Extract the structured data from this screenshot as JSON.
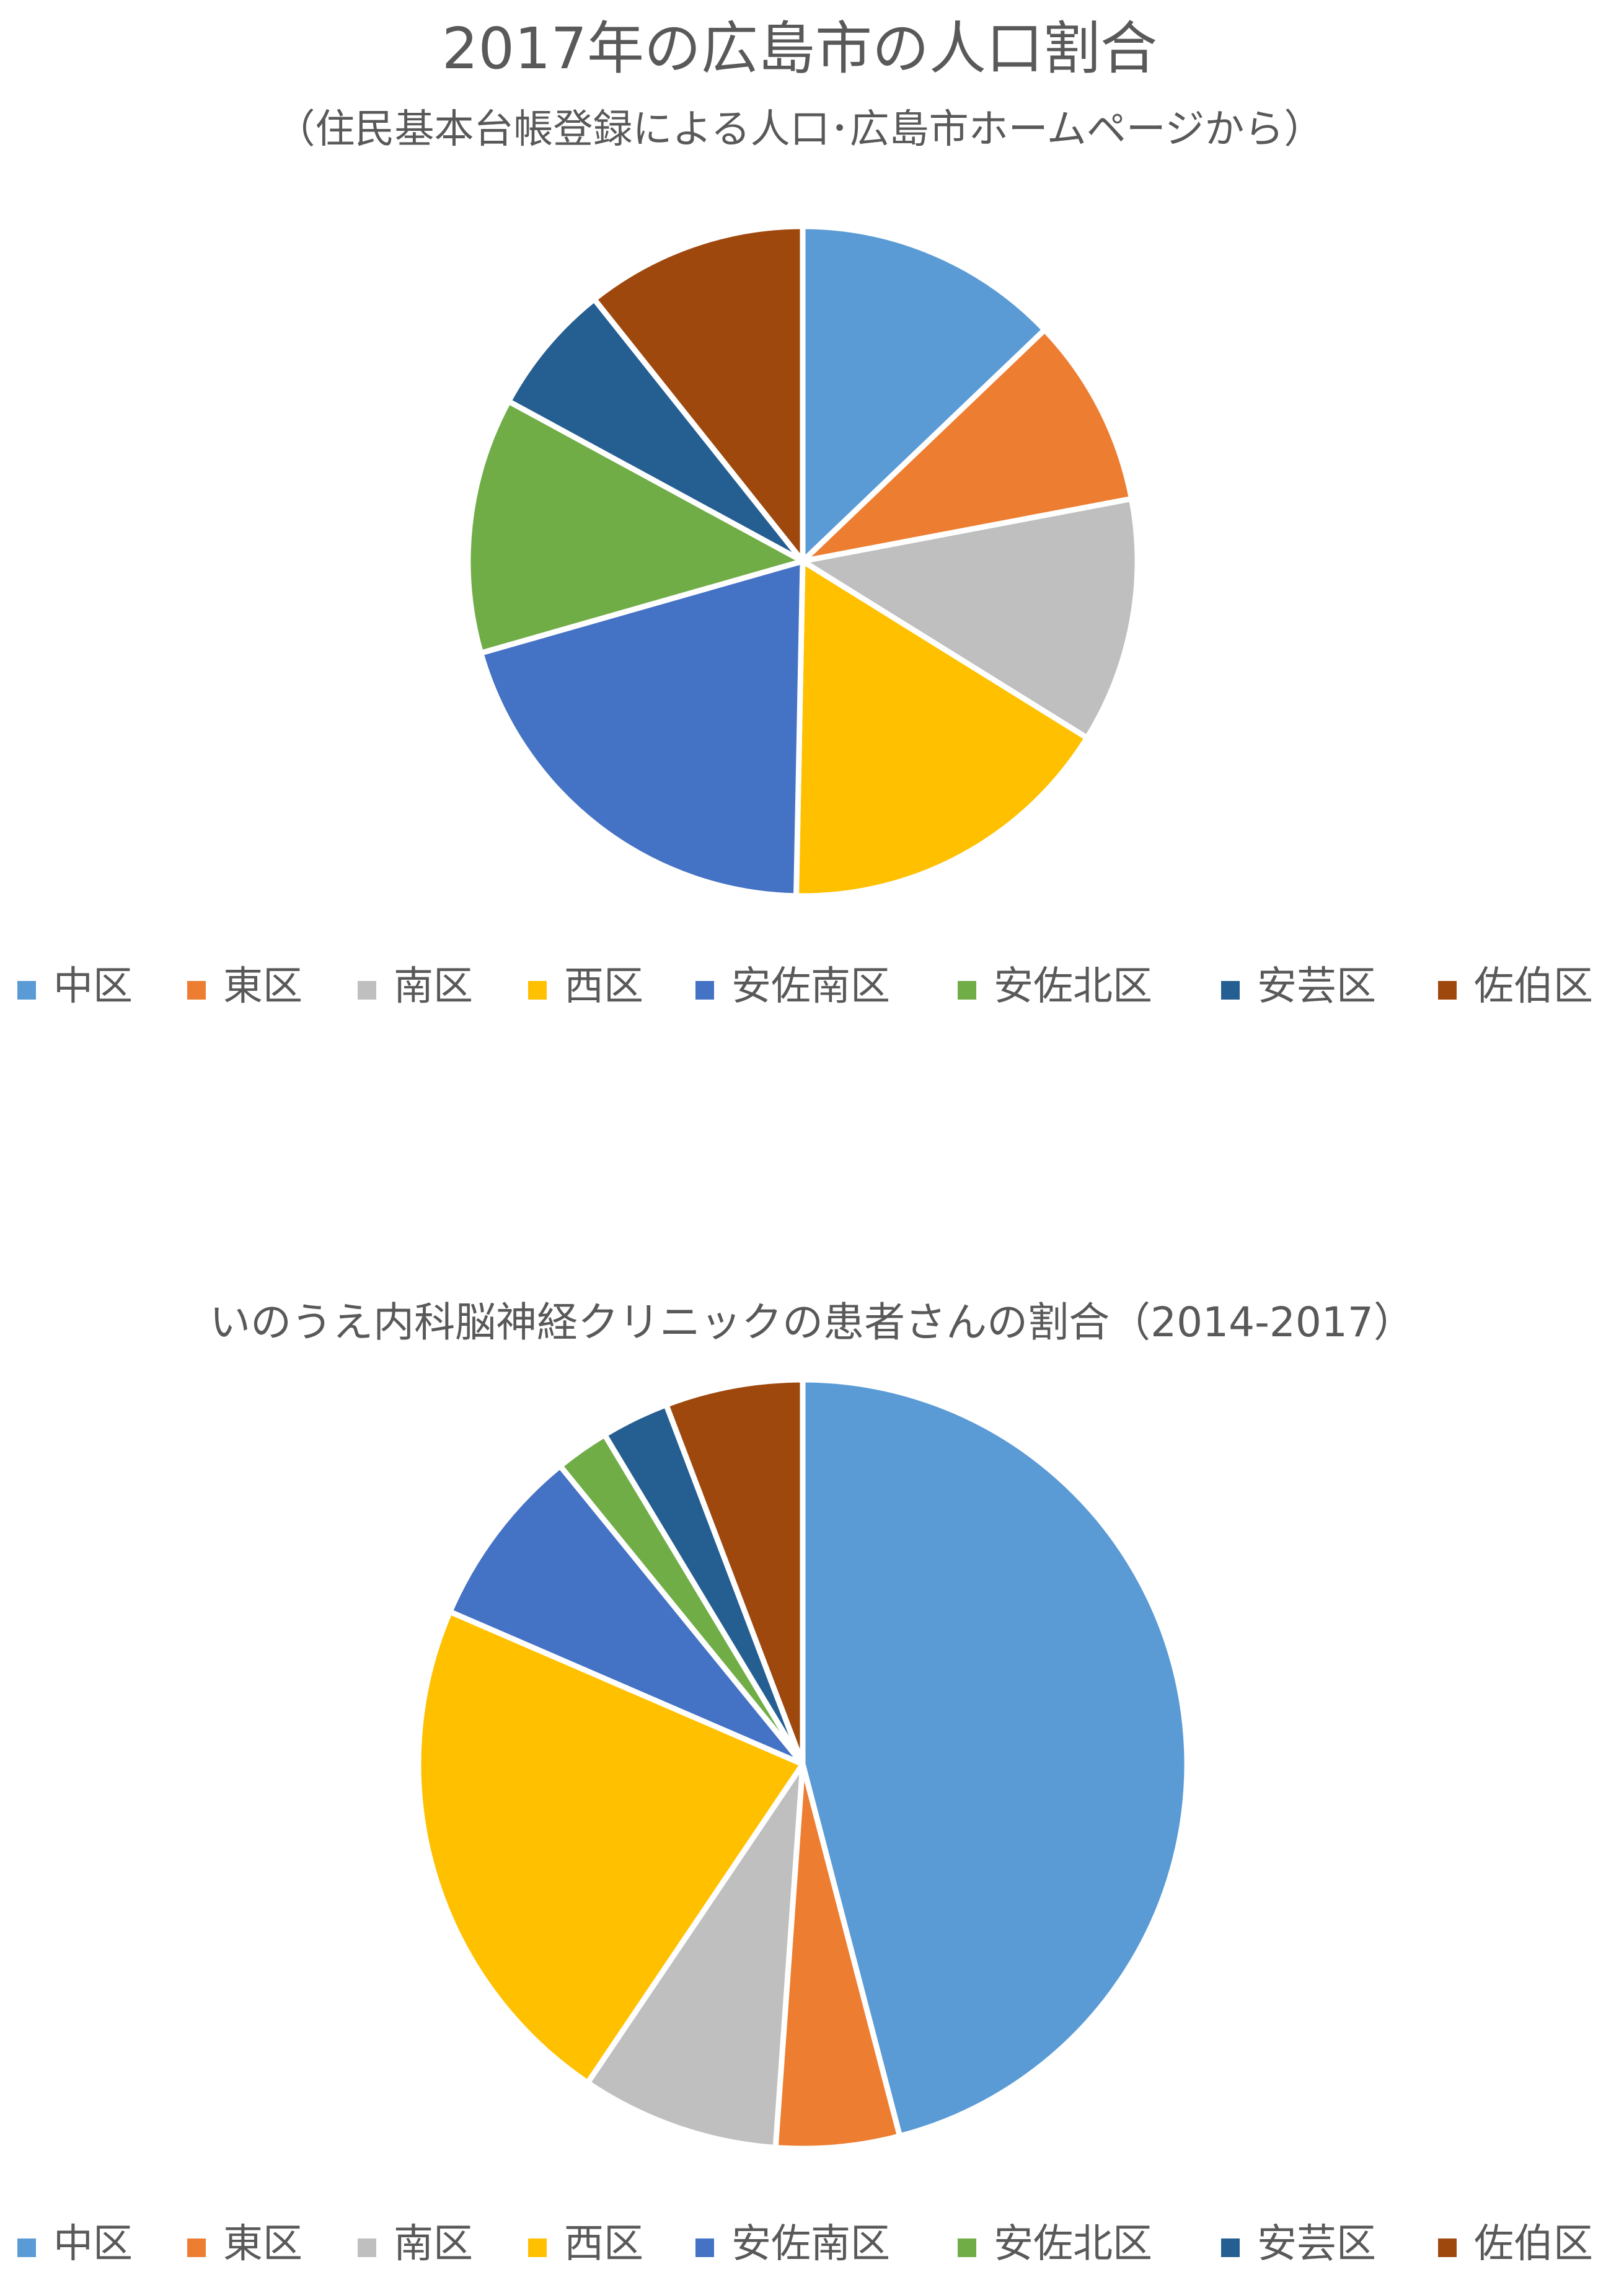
{
  "chart_data": [
    {
      "type": "pie",
      "title": "2017年の広島市の人口割合",
      "subtitle": "（住民基本台帳登録による人口･広島市ホームページから）",
      "categories": [
        "中区",
        "東区",
        "南区",
        "西区",
        "安佐南区",
        "安佐北区",
        "安芸区",
        "佐伯区"
      ],
      "values": [
        12.5,
        8.9,
        11.5,
        16.0,
        19.7,
        12.0,
        6.2,
        10.4
      ],
      "colors": [
        "#5b9bd5",
        "#ed7d31",
        "#bfbfbf",
        "#ffc000",
        "#4472c4",
        "#70ad47",
        "#255e91",
        "#9e480e"
      ],
      "legend": "bottom"
    },
    {
      "type": "pie",
      "title": "いのうえ内科脳神経クリニックの患者さんの割合（2014-2017）",
      "categories": [
        "中区",
        "東区",
        "南区",
        "西区",
        "安佐南区",
        "安佐北区",
        "安芸区",
        "佐伯区"
      ],
      "values": [
        46.9,
        5.3,
        8.5,
        22.5,
        7.8,
        2.3,
        2.9,
        5.9
      ],
      "colors": [
        "#5b9bd5",
        "#ed7d31",
        "#bfbfbf",
        "#ffc000",
        "#4472c4",
        "#70ad47",
        "#255e91",
        "#9e480e"
      ],
      "legend": "bottom"
    }
  ]
}
